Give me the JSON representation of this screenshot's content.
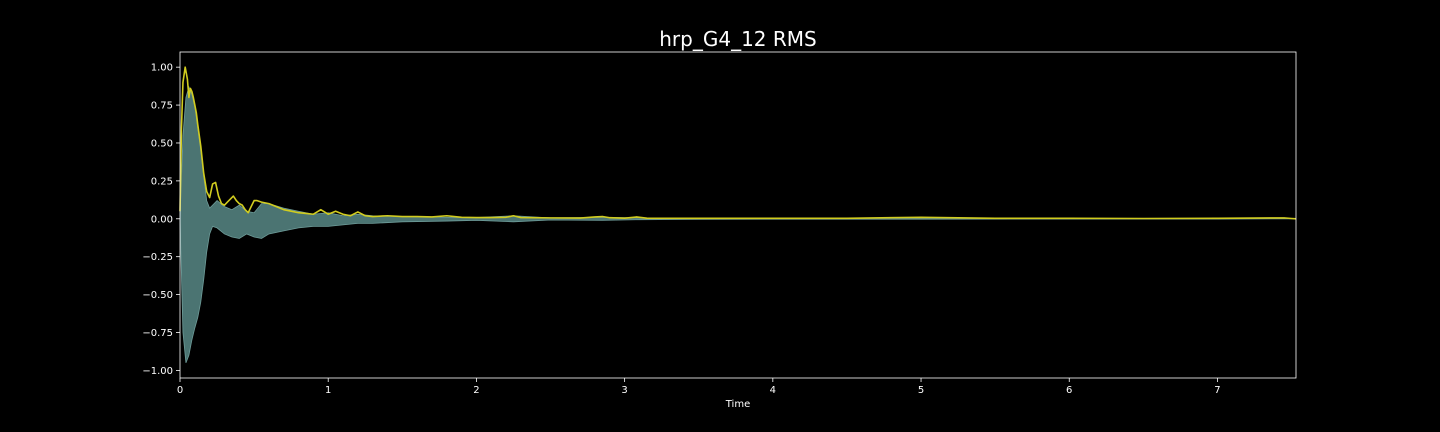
{
  "chart_data": {
    "type": "area",
    "title": "hrp_G4_12 RMS",
    "xlabel": "Time",
    "ylabel": "",
    "xlim": [
      0,
      7.53
    ],
    "ylim": [
      -1.05,
      1.1
    ],
    "x_ticks": [
      0,
      1,
      2,
      3,
      4,
      5,
      6,
      7
    ],
    "y_ticks": [
      1.0,
      0.75,
      0.5,
      0.25,
      0.0,
      -0.25,
      -0.5,
      -0.75,
      -1.0
    ],
    "x_tick_labels": [
      "0",
      "1",
      "2",
      "3",
      "4",
      "5",
      "6",
      "7"
    ],
    "y_tick_labels": [
      "1.00",
      "0.75",
      "0.50",
      "0.25",
      "0.00",
      "−0.25",
      "−0.50",
      "−0.75",
      "−1.00"
    ],
    "grid": false,
    "series": [
      {
        "kind": "waveform-envelope",
        "color": "#4f7a78",
        "x": [
          0,
          0.02,
          0.04,
          0.06,
          0.08,
          0.1,
          0.12,
          0.14,
          0.16,
          0.18,
          0.2,
          0.22,
          0.25,
          0.3,
          0.35,
          0.4,
          0.45,
          0.5,
          0.55,
          0.6,
          0.7,
          0.8,
          0.9,
          1.0,
          1.1,
          1.2,
          1.3,
          1.5,
          1.8,
          2.0,
          2.25,
          2.5,
          2.85,
          3.1,
          3.5,
          4.0,
          5.0,
          6.0,
          7.0,
          7.53
        ],
        "upper": [
          0.0,
          0.55,
          0.8,
          0.87,
          0.82,
          0.74,
          0.6,
          0.45,
          0.28,
          0.12,
          0.07,
          0.09,
          0.12,
          0.08,
          0.06,
          0.09,
          0.05,
          0.04,
          0.1,
          0.1,
          0.07,
          0.05,
          0.03,
          0.04,
          0.02,
          0.03,
          0.02,
          0.015,
          0.01,
          0.008,
          0.02,
          0.006,
          0.01,
          0.006,
          0.004,
          0.003,
          0.004,
          0.002,
          0.002,
          0.0
        ],
        "lower": [
          0.0,
          -0.75,
          -0.95,
          -0.9,
          -0.8,
          -0.72,
          -0.65,
          -0.55,
          -0.4,
          -0.22,
          -0.1,
          -0.05,
          -0.06,
          -0.1,
          -0.12,
          -0.13,
          -0.1,
          -0.12,
          -0.13,
          -0.1,
          -0.08,
          -0.06,
          -0.05,
          -0.05,
          -0.04,
          -0.03,
          -0.03,
          -0.02,
          -0.015,
          -0.01,
          -0.02,
          -0.008,
          -0.01,
          -0.006,
          -0.004,
          -0.003,
          -0.003,
          -0.002,
          -0.002,
          0.0
        ]
      },
      {
        "kind": "rms",
        "color": "#d1cc1f",
        "x": [
          0,
          0.01,
          0.02,
          0.035,
          0.05,
          0.06,
          0.07,
          0.08,
          0.09,
          0.1,
          0.11,
          0.12,
          0.14,
          0.16,
          0.18,
          0.2,
          0.22,
          0.24,
          0.26,
          0.28,
          0.3,
          0.32,
          0.34,
          0.36,
          0.38,
          0.4,
          0.42,
          0.44,
          0.46,
          0.48,
          0.5,
          0.52,
          0.55,
          0.6,
          0.65,
          0.7,
          0.75,
          0.8,
          0.85,
          0.9,
          0.95,
          1.0,
          1.05,
          1.1,
          1.15,
          1.2,
          1.25,
          1.3,
          1.4,
          1.5,
          1.6,
          1.7,
          1.8,
          1.9,
          2.0,
          2.1,
          2.2,
          2.25,
          2.3,
          2.5,
          2.7,
          2.8,
          2.85,
          2.9,
          3.0,
          3.08,
          3.15,
          3.5,
          4.0,
          4.5,
          5.0,
          5.5,
          6.0,
          6.5,
          7.0,
          7.45,
          7.5,
          7.53
        ],
        "values": [
          0.05,
          0.6,
          0.9,
          1.0,
          0.92,
          0.8,
          0.86,
          0.84,
          0.8,
          0.75,
          0.7,
          0.62,
          0.48,
          0.3,
          0.18,
          0.14,
          0.23,
          0.24,
          0.15,
          0.1,
          0.09,
          0.11,
          0.13,
          0.15,
          0.12,
          0.1,
          0.09,
          0.06,
          0.04,
          0.08,
          0.12,
          0.12,
          0.11,
          0.1,
          0.08,
          0.06,
          0.05,
          0.04,
          0.035,
          0.03,
          0.06,
          0.03,
          0.05,
          0.03,
          0.02,
          0.045,
          0.02,
          0.015,
          0.02,
          0.015,
          0.015,
          0.012,
          0.02,
          0.01,
          0.008,
          0.008,
          0.01,
          0.02,
          0.008,
          0.006,
          0.005,
          0.012,
          0.015,
          0.007,
          0.004,
          0.012,
          0.004,
          0.003,
          0.003,
          0.003,
          0.01,
          0.003,
          0.003,
          0.002,
          0.003,
          0.006,
          0.002,
          0.0
        ]
      }
    ]
  },
  "colors": {
    "background": "#000000",
    "axes_edge": "#ffffff",
    "text": "#ffffff",
    "waveform": "#4f7a78",
    "rms_line": "#d1cc1f"
  }
}
